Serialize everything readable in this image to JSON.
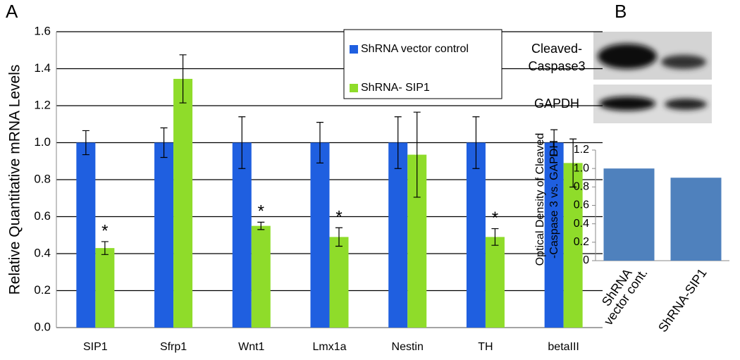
{
  "panels": {
    "a": "A",
    "b": "B"
  },
  "blot": {
    "rows": [
      [
        "Cleaved-",
        "Caspase3"
      ],
      [
        "GAPDH"
      ]
    ]
  },
  "chart_data": [
    {
      "type": "bar",
      "ylabel": "Relative Quantitative mRNA Levels",
      "categories": [
        "SIP1",
        "Sfrp1",
        "Wnt1",
        "Lmx1a",
        "Nestin",
        "TH",
        "betaIII"
      ],
      "series": [
        {
          "name": "ShRNA vector control",
          "color": "#1f5fe0",
          "values": [
            1.0,
            1.0,
            1.0,
            1.0,
            1.0,
            1.0,
            1.0
          ],
          "errors": [
            0.065,
            0.08,
            0.14,
            0.11,
            0.14,
            0.14,
            0.07
          ]
        },
        {
          "name": "ShRNA- SIP1",
          "color": "#8fdc2a",
          "values": [
            0.43,
            1.345,
            0.55,
            0.49,
            0.935,
            0.49,
            0.89
          ],
          "errors": [
            0.035,
            0.13,
            0.02,
            0.05,
            0.23,
            0.045,
            0.13
          ],
          "significance": [
            "*",
            null,
            "*",
            "*",
            null,
            "*",
            null
          ]
        }
      ],
      "ylim": [
        0,
        1.6
      ],
      "yticks": [
        {
          "value": 0,
          "label": "0.0"
        },
        0.2,
        0.4,
        0.6,
        0.8,
        {
          "value": 1,
          "label": "1.0"
        },
        1.2,
        1.4,
        1.6
      ],
      "grid": true,
      "legend": "upper right"
    },
    {
      "type": "bar",
      "ylabel": [
        "Optical Density of Cleaved",
        "-Caspase 3 vs. GAPDH"
      ],
      "categories": [
        [
          "ShRNA",
          "vector cont."
        ],
        [
          "ShRNA-SIP1"
        ]
      ],
      "values": [
        1.0,
        0.9
      ],
      "color": "#4f81bd",
      "ylim": [
        0,
        1.2
      ],
      "yticks": [
        0,
        0.2,
        0.4,
        0.6,
        0.8,
        {
          "value": 1,
          "label": "1.0"
        },
        1.2
      ],
      "grid": false
    }
  ]
}
